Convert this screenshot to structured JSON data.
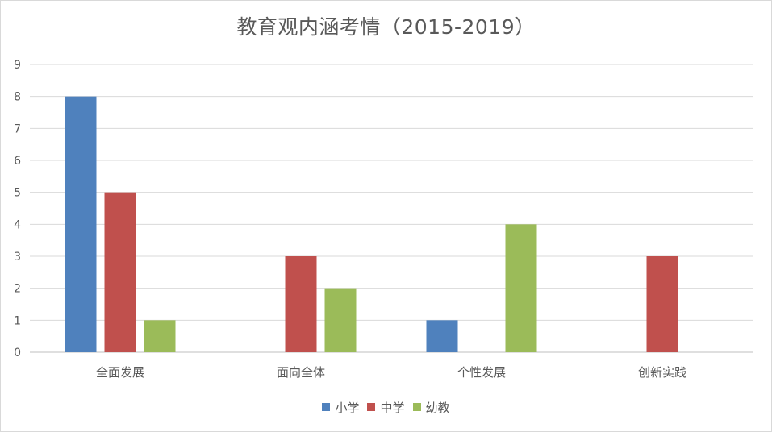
{
  "chart_data": {
    "type": "bar",
    "title": "教育观内涵考情（2015-2019）",
    "categories": [
      "全面发展",
      "面向全体",
      "个性发展",
      "创新实践"
    ],
    "series": [
      {
        "name": "小学",
        "color": "#4f81bd",
        "values": [
          8,
          0,
          1,
          0
        ]
      },
      {
        "name": "中学",
        "color": "#c0504d",
        "values": [
          5,
          3,
          0,
          3
        ]
      },
      {
        "name": "幼教",
        "color": "#9bbb59",
        "values": [
          1,
          2,
          4,
          0
        ]
      }
    ],
    "ylim": [
      0,
      9
    ],
    "yticks": [
      "0",
      "1",
      "2",
      "3",
      "4",
      "5",
      "6",
      "7",
      "8",
      "9"
    ],
    "grid": true,
    "legend_position": "bottom"
  }
}
